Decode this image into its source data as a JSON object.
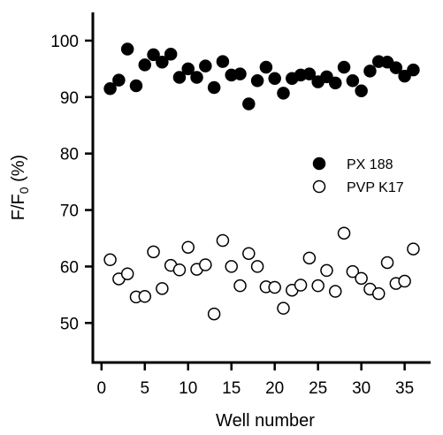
{
  "chart_data": {
    "type": "scatter",
    "xlabel": "Well number",
    "ylabel_main": "F/F",
    "ylabel_sub": "0",
    "ylabel_unit": " (%)",
    "xlim": [
      -1,
      38
    ],
    "ylim": [
      43,
      105
    ],
    "xticks": [
      0,
      5,
      10,
      15,
      20,
      25,
      30,
      35
    ],
    "yticks": [
      50,
      60,
      70,
      80,
      90,
      100
    ],
    "legend_position": "right-middle",
    "series": [
      {
        "name": "PX 188",
        "marker": "filled-circle",
        "color": "#000000",
        "x": [
          1,
          2,
          3,
          4,
          5,
          6,
          7,
          8,
          9,
          10,
          11,
          12,
          13,
          14,
          15,
          16,
          17,
          18,
          19,
          20,
          21,
          22,
          23,
          24,
          25,
          26,
          27,
          28,
          29,
          30,
          31,
          32,
          33,
          34,
          35,
          36
        ],
        "y": [
          91.5,
          93.0,
          98.5,
          92.0,
          95.7,
          97.5,
          96.2,
          97.6,
          93.5,
          95.0,
          93.5,
          95.5,
          91.7,
          96.3,
          93.9,
          94.1,
          88.8,
          92.9,
          95.3,
          93.3,
          90.7,
          93.3,
          93.9,
          94.1,
          92.7,
          93.6,
          92.5,
          95.3,
          92.9,
          91.1,
          94.6,
          96.3,
          96.2,
          95.2,
          93.7,
          94.8
        ]
      },
      {
        "name": "PVP K17",
        "marker": "open-circle",
        "color": "#000000",
        "x": [
          1,
          2,
          3,
          4,
          5,
          6,
          7,
          8,
          9,
          10,
          11,
          12,
          13,
          14,
          15,
          16,
          17,
          18,
          19,
          20,
          21,
          22,
          23,
          24,
          25,
          26,
          27,
          28,
          29,
          30,
          31,
          32,
          33,
          34,
          35,
          36
        ],
        "y": [
          61.2,
          57.8,
          58.7,
          54.6,
          54.7,
          62.6,
          56.1,
          60.2,
          59.4,
          63.4,
          59.5,
          60.3,
          51.6,
          64.6,
          60.0,
          56.6,
          62.3,
          60.0,
          56.4,
          56.3,
          52.6,
          55.8,
          56.7,
          61.5,
          56.6,
          59.3,
          55.6,
          65.9,
          59.1,
          57.9,
          56.0,
          55.2,
          60.7,
          57.0,
          57.4,
          63.1
        ]
      }
    ]
  }
}
